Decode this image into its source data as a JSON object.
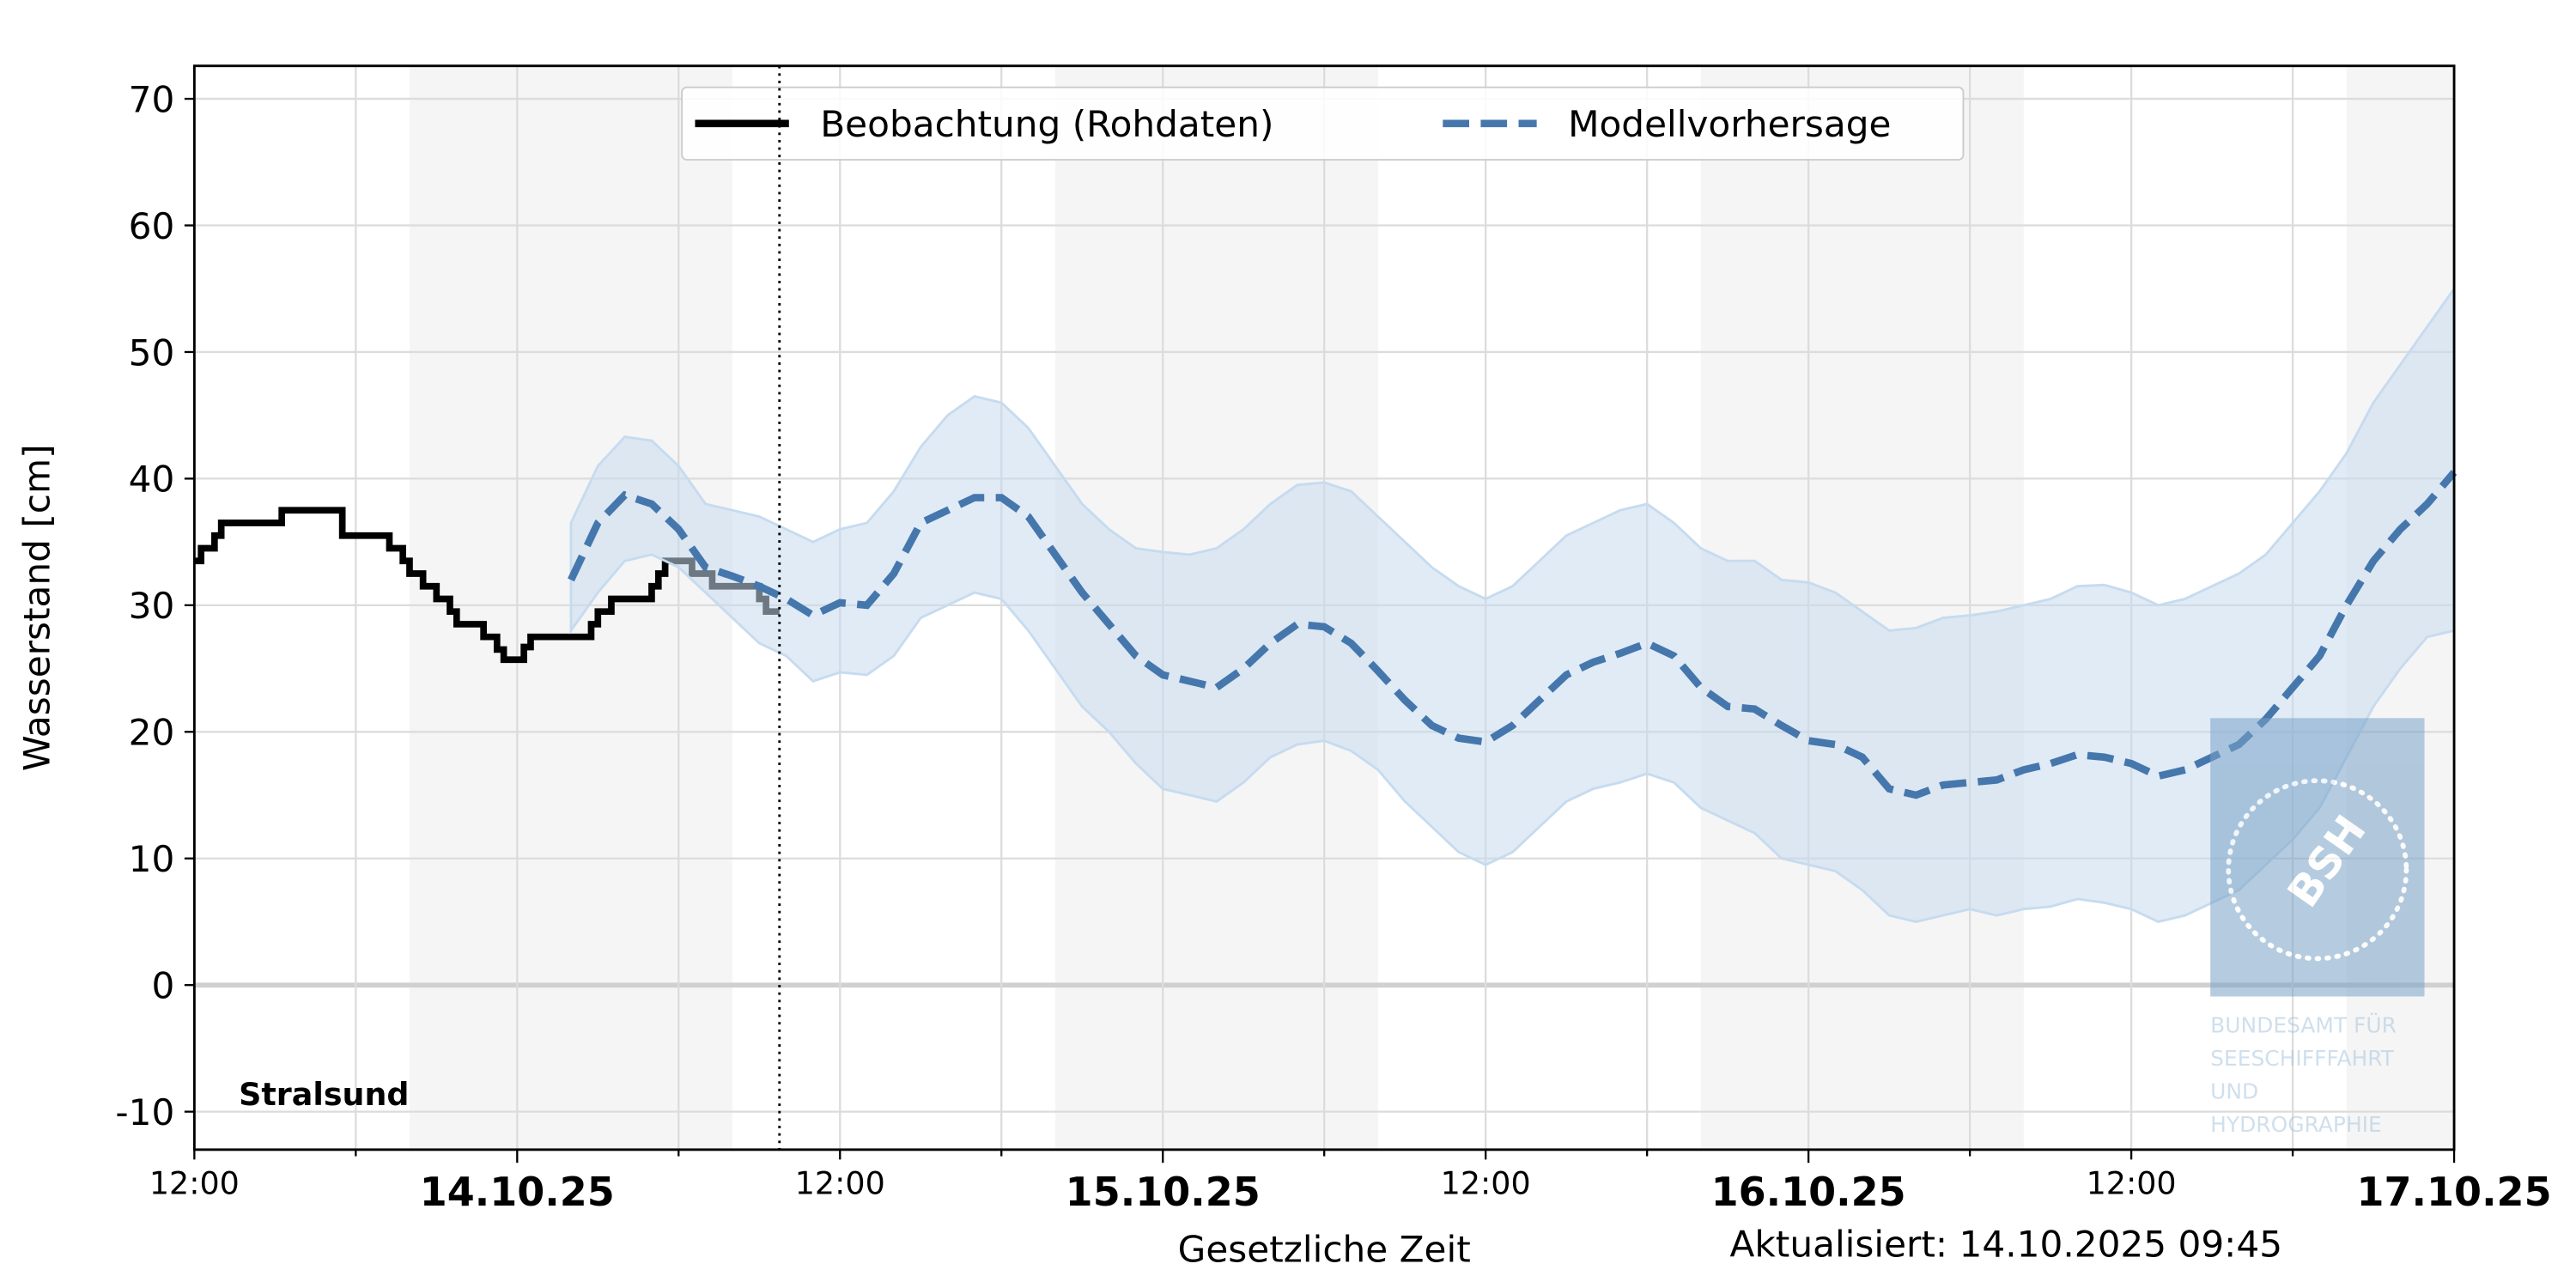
{
  "chart_data": {
    "type": "line",
    "ylabel": "Wasserstand [cm]",
    "xlabel": "Gesetzliche Zeit",
    "updated": "Aktualisiert: 14.10.2025 09:45",
    "station": "Stralsund",
    "now": "14.10.25 09:45",
    "xlim": [
      "13.10.25 12:00",
      "17.10.25 00:00"
    ],
    "xticks": [
      {
        "value": "14.10.25 00:00",
        "label": "14.10.25"
      },
      {
        "value": "15.10.25 00:00",
        "label": "15.10.25"
      },
      {
        "value": "16.10.25 00:00",
        "label": "16.10.25"
      },
      {
        "value": "17.10.25 00:00",
        "label": "17.10.25"
      }
    ],
    "xticks_minor": [
      {
        "value": "13.10.25 12:00",
        "label": "12:00"
      },
      {
        "value": "14.10.25 12:00",
        "label": "12:00"
      },
      {
        "value": "15.10.25 12:00",
        "label": "12:00"
      },
      {
        "value": "16.10.25 12:00",
        "label": "12:00"
      }
    ],
    "xgrid_minor": [
      "13.10.25 18:00",
      "14.10.25 06:00",
      "14.10.25 18:00",
      "15.10.25 06:00",
      "15.10.25 18:00",
      "16.10.25 06:00",
      "16.10.25 18:00"
    ],
    "night_bands": [
      [
        "13.10.25 20:00",
        "14.10.25 08:00"
      ],
      [
        "14.10.25 20:00",
        "15.10.25 08:00"
      ],
      [
        "15.10.25 20:00",
        "16.10.25 08:00"
      ],
      [
        "16.10.25 20:00",
        "17.10.25 00:00"
      ]
    ],
    "ylim": [
      -13,
      72.6
    ],
    "yticks": [
      -10,
      0,
      10,
      20,
      30,
      40,
      50,
      60,
      70
    ],
    "grid": true,
    "legend": "upper center",
    "series": [
      {
        "name": "Beobachtung (Rohdaten)",
        "color": "#000000",
        "drawstyle": "steps-post",
        "x": [
          "13.10.25 12:00",
          "13.10.25 12:15",
          "13.10.25 12:45",
          "13.10.25 13:00",
          "13.10.25 15:15",
          "13.10.25 17:30",
          "13.10.25 19:15",
          "13.10.25 19:45",
          "13.10.25 20:00",
          "13.10.25 20:30",
          "13.10.25 21:00",
          "13.10.25 21:30",
          "13.10.25 21:45",
          "13.10.25 22:45",
          "13.10.25 23:15",
          "13.10.25 23:30",
          "14.10.25 00:15",
          "14.10.25 00:30",
          "14.10.25 02:45",
          "14.10.25 03:00",
          "14.10.25 03:30",
          "14.10.25 05:00",
          "14.10.25 05:15",
          "14.10.25 05:30",
          "14.10.25 06:30",
          "14.10.25 07:15",
          "14.10.25 09:00",
          "14.10.25 09:15",
          "14.10.25 09:45"
        ],
        "values": [
          33.5,
          34.5,
          35.5,
          36.5,
          37.5,
          35.5,
          34.5,
          33.5,
          32.5,
          31.5,
          30.5,
          29.5,
          28.5,
          27.5,
          26.5,
          25.7,
          26.7,
          27.5,
          28.5,
          29.5,
          30.5,
          31.5,
          32.5,
          33.5,
          32.5,
          31.5,
          30.5,
          29.5,
          29.5
        ]
      },
      {
        "name": "Modellvorhersage",
        "color": "#4577ad",
        "band_color": "#c6dbef",
        "dashed": true,
        "x": [
          "14.10.25 02:00",
          "14.10.25 03:00",
          "14.10.25 04:00",
          "14.10.25 05:00",
          "14.10.25 06:00",
          "14.10.25 07:00",
          "14.10.25 08:00",
          "14.10.25 09:00",
          "14.10.25 10:00",
          "14.10.25 11:00",
          "14.10.25 12:00",
          "14.10.25 13:00",
          "14.10.25 14:00",
          "14.10.25 15:00",
          "14.10.25 16:00",
          "14.10.25 17:00",
          "14.10.25 18:00",
          "14.10.25 19:00",
          "14.10.25 20:00",
          "14.10.25 21:00",
          "14.10.25 22:00",
          "14.10.25 23:00",
          "15.10.25 00:00",
          "15.10.25 01:00",
          "15.10.25 02:00",
          "15.10.25 03:00",
          "15.10.25 04:00",
          "15.10.25 05:00",
          "15.10.25 06:00",
          "15.10.25 07:00",
          "15.10.25 08:00",
          "15.10.25 09:00",
          "15.10.25 10:00",
          "15.10.25 11:00",
          "15.10.25 12:00",
          "15.10.25 13:00",
          "15.10.25 14:00",
          "15.10.25 15:00",
          "15.10.25 16:00",
          "15.10.25 17:00",
          "15.10.25 18:00",
          "15.10.25 19:00",
          "15.10.25 20:00",
          "15.10.25 21:00",
          "15.10.25 22:00",
          "15.10.25 23:00",
          "16.10.25 00:00",
          "16.10.25 01:00",
          "16.10.25 02:00",
          "16.10.25 03:00",
          "16.10.25 04:00",
          "16.10.25 05:00",
          "16.10.25 06:00",
          "16.10.25 07:00",
          "16.10.25 08:00",
          "16.10.25 09:00",
          "16.10.25 10:00",
          "16.10.25 11:00",
          "16.10.25 12:00",
          "16.10.25 13:00",
          "16.10.25 14:00",
          "16.10.25 15:00",
          "16.10.25 16:00",
          "16.10.25 17:00",
          "16.10.25 18:00",
          "16.10.25 19:00",
          "16.10.25 20:00",
          "16.10.25 21:00",
          "16.10.25 22:00",
          "16.10.25 23:00",
          "17.10.25 00:00"
        ],
        "values": [
          32,
          36.5,
          38.7,
          38,
          36,
          33,
          32.3,
          31.5,
          30.5,
          29.2,
          30.2,
          30,
          32.5,
          36.5,
          37.5,
          38.5,
          38.5,
          37,
          34,
          31,
          28.5,
          26,
          24.5,
          24,
          23.5,
          25,
          27,
          28.5,
          28.3,
          27,
          24.8,
          22.5,
          20.5,
          19.5,
          19.2,
          20.5,
          22.5,
          24.5,
          25.5,
          26.2,
          27,
          26,
          23.5,
          22,
          21.8,
          20.5,
          19.3,
          19,
          18,
          15.5,
          15,
          15.8,
          16,
          16.2,
          17,
          17.5,
          18.2,
          18,
          17.5,
          16.5,
          17,
          18,
          19,
          21,
          23.5,
          26,
          30,
          33.5,
          36,
          38,
          40.5
        ],
        "upper": [
          36.5,
          41,
          43.3,
          43,
          41,
          38,
          37.5,
          37,
          36,
          35,
          36,
          36.5,
          39,
          42.5,
          45,
          46.5,
          46,
          44,
          41,
          38,
          36,
          34.5,
          34.2,
          34,
          34.5,
          36,
          38,
          39.5,
          39.7,
          39,
          37,
          35,
          33,
          31.5,
          30.5,
          31.5,
          33.5,
          35.5,
          36.5,
          37.5,
          38,
          36.5,
          34.5,
          33.5,
          33.5,
          32,
          31.8,
          31,
          29.5,
          28,
          28.2,
          29,
          29.2,
          29.5,
          30,
          30.5,
          31.5,
          31.6,
          31,
          30,
          30.5,
          31.5,
          32.5,
          34,
          36.5,
          39,
          42,
          46,
          49,
          52,
          55
        ],
        "lower": [
          28,
          31,
          33.5,
          34,
          33,
          31,
          29,
          27,
          26,
          24,
          24.7,
          24.5,
          26,
          29,
          30,
          31,
          30.5,
          28,
          25,
          22,
          20,
          17.5,
          15.5,
          15,
          14.5,
          16,
          18,
          19,
          19.3,
          18.5,
          17,
          14.5,
          12.5,
          10.5,
          9.5,
          10.5,
          12.5,
          14.5,
          15.5,
          16,
          16.7,
          16,
          14,
          13,
          12,
          10,
          9.5,
          9,
          7.5,
          5.5,
          5,
          5.5,
          6,
          5.5,
          6,
          6.2,
          6.8,
          6.5,
          6,
          5,
          5.5,
          6.5,
          7.5,
          9.5,
          11.5,
          14,
          18,
          22,
          25,
          27.5,
          28
        ]
      }
    ],
    "logo": {
      "mark": "BSH",
      "lines": [
        "BUNDESAMT FÜR",
        "SEESCHIFFFAHRT",
        "UND",
        "HYDROGRAPHIE"
      ]
    }
  }
}
